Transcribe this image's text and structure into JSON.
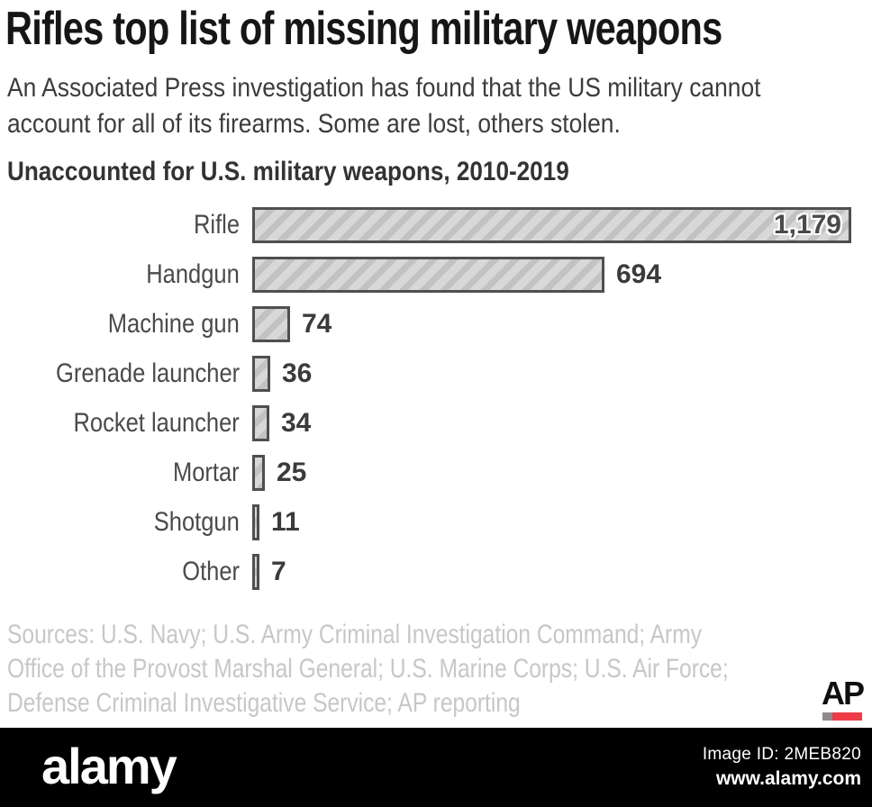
{
  "page": {
    "title": "Rifles top list of missing military weapons",
    "subtitle_lines": [
      "An Associated Press investigation has found that the US military cannot",
      "account for all of its firearms. Some are lost, others stolen."
    ]
  },
  "chart_data": {
    "type": "bar",
    "orientation": "horizontal",
    "title": "Unaccounted for U.S. military weapons, 2010-2019",
    "categories": [
      "Rifle",
      "Handgun",
      "Machine gun",
      "Grenade launcher",
      "Rocket launcher",
      "Mortar",
      "Shotgun",
      "Other"
    ],
    "values": [
      1179,
      694,
      74,
      36,
      34,
      25,
      11,
      7
    ],
    "value_labels": [
      "1,179",
      "694",
      "74",
      "36",
      "34",
      "25",
      "11",
      "7"
    ],
    "label_inside": [
      true,
      false,
      false,
      false,
      false,
      false,
      false,
      false
    ],
    "xlim": [
      0,
      1179
    ],
    "grid": false,
    "legend": false,
    "bar_style": "diagonal-hatch"
  },
  "sources_lines": [
    "Sources: U.S. Navy; U.S. Army Criminal Investigation Command; Army",
    "Office of  the Provost Marshal General; U.S. Marine Corps; U.S. Air Force;",
    "Defense Criminal Investigative Service; AP reporting"
  ],
  "credit": {
    "ap": "AP"
  },
  "watermark_bar": {
    "brand": "alamy",
    "image_id": "Image ID: 2MEB820",
    "url": "www.alamy.com"
  },
  "colors": {
    "bar_fill": "#d8d8d8",
    "bar_hatch": "#c2c2c2",
    "bar_border": "#4f4f4f",
    "accent_red": "#ee3b47",
    "sources_text": "#c7c7c7",
    "footer_bg": "#000000"
  }
}
